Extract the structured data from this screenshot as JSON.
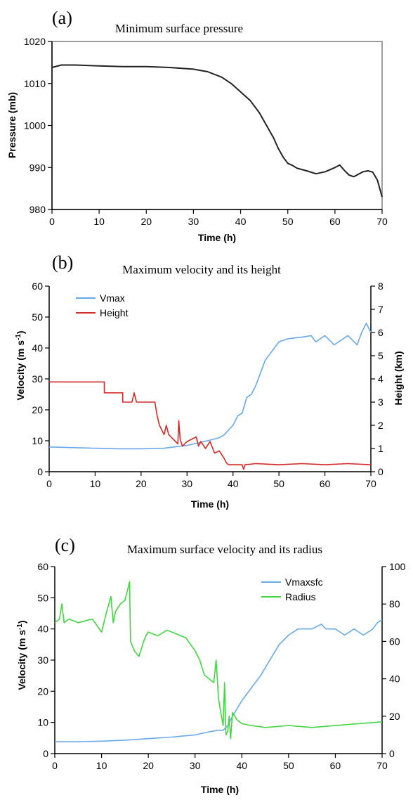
{
  "chart_data": [
    {
      "type": "line",
      "panel_label": "(a)",
      "title": "Minimum surface pressure",
      "xlabel": "Time (h)",
      "ylabel": "Pressure (mb)",
      "xlim": [
        0,
        70
      ],
      "ylim": [
        980,
        1020
      ],
      "x_ticks": [
        0,
        10,
        20,
        30,
        40,
        50,
        60,
        70
      ],
      "y_ticks": [
        980,
        990,
        1000,
        1010,
        1020
      ],
      "grid": false,
      "series": [
        {
          "color": "#222222",
          "x": [
            0,
            2,
            5,
            10,
            15,
            20,
            25,
            30,
            33,
            36,
            38,
            40,
            42,
            44,
            45,
            46,
            47,
            48,
            49,
            50,
            51,
            52,
            54,
            56,
            58,
            60,
            61,
            62,
            63,
            64,
            65,
            66,
            67,
            68,
            69,
            70
          ],
          "y": [
            1013.8,
            1014.4,
            1014.4,
            1014.2,
            1014.0,
            1014.0,
            1013.8,
            1013.4,
            1012.8,
            1011.5,
            1010.0,
            1008.0,
            1006.0,
            1003.0,
            1001.0,
            999.0,
            997.0,
            994.5,
            992.5,
            991.0,
            990.5,
            989.8,
            989.2,
            988.5,
            989.0,
            990.0,
            990.6,
            989.3,
            988.2,
            987.8,
            988.4,
            989.0,
            989.2,
            988.9,
            987.0,
            983.0
          ]
        }
      ]
    },
    {
      "type": "line",
      "panel_label": "(b)",
      "title": "Maximum velocity and its height",
      "xlabel": "Time (h)",
      "ylabel": "Velocity (m s-1)",
      "y2label": "Height (km)",
      "xlim": [
        0,
        70
      ],
      "ylim": [
        0,
        60
      ],
      "y2lim": [
        0,
        8
      ],
      "x_ticks": [
        0,
        10,
        20,
        30,
        40,
        50,
        60,
        70
      ],
      "y_ticks": [
        0,
        10,
        20,
        30,
        40,
        50,
        60
      ],
      "y2_ticks": [
        0,
        1,
        2,
        3,
        4,
        5,
        6,
        7,
        8
      ],
      "grid": false,
      "legend_position": "top-left",
      "series": [
        {
          "name": "Vmax",
          "color": "#6aa8e8",
          "axis": "left",
          "x": [
            0,
            5,
            10,
            15,
            20,
            25,
            30,
            33,
            35,
            37,
            38,
            40,
            41,
            42,
            43,
            44,
            45,
            46,
            47,
            48,
            49,
            50,
            52,
            55,
            57,
            58,
            60,
            62,
            64,
            65,
            67,
            68,
            69,
            70
          ],
          "y": [
            8.0,
            7.8,
            7.6,
            7.4,
            7.4,
            7.6,
            8.5,
            9.5,
            10.2,
            11.0,
            11.8,
            15.0,
            18.0,
            19.0,
            24.0,
            25.0,
            28.0,
            32.0,
            36.0,
            38.0,
            40.0,
            42.0,
            43.0,
            43.5,
            44.0,
            42.0,
            44.0,
            41.0,
            43.0,
            44.0,
            41.0,
            45.0,
            48.0,
            45.0
          ]
        },
        {
          "name": "Height",
          "color": "#d42a2a",
          "axis": "right",
          "x": [
            0,
            12,
            12,
            16,
            16,
            18,
            18.5,
            19,
            23,
            23.5,
            24,
            25,
            25.5,
            26,
            27,
            28,
            28.2,
            28.5,
            29,
            30,
            32,
            32.5,
            33,
            34,
            35,
            36,
            37,
            38,
            38.5,
            39,
            42,
            42.3,
            42.6,
            45,
            50,
            55,
            60,
            65,
            70
          ],
          "y": [
            3.87,
            3.87,
            3.4,
            3.4,
            3.0,
            3.0,
            3.4,
            3.0,
            3.0,
            2.4,
            2.0,
            1.6,
            2.0,
            1.6,
            1.4,
            1.2,
            2.2,
            1.4,
            1.1,
            1.3,
            1.5,
            1.1,
            1.3,
            1.0,
            1.3,
            0.8,
            0.9,
            0.6,
            0.4,
            0.3,
            0.3,
            0.1,
            0.3,
            0.35,
            0.3,
            0.35,
            0.3,
            0.35,
            0.3
          ]
        }
      ]
    },
    {
      "type": "line",
      "panel_label": "(c)",
      "title": "Maximum surface velocity and its radius",
      "xlabel": "Time (h)",
      "ylabel": "Velocity (m s-1)",
      "y2label": "",
      "xlim": [
        0,
        70
      ],
      "ylim": [
        0,
        60
      ],
      "y2lim": [
        0,
        100
      ],
      "x_ticks": [
        0,
        10,
        20,
        30,
        40,
        50,
        60,
        70
      ],
      "y_ticks": [
        0,
        10,
        20,
        30,
        40,
        50,
        60
      ],
      "y2_ticks": [
        0,
        20,
        40,
        60,
        80,
        100
      ],
      "grid": false,
      "legend_position": "top-right",
      "series": [
        {
          "name": "Vmaxsfc",
          "color": "#6aa8e8",
          "axis": "left",
          "x": [
            0,
            5,
            10,
            15,
            20,
            25,
            30,
            33,
            35,
            36,
            37,
            38,
            40,
            42,
            44,
            46,
            48,
            50,
            52,
            55,
            57,
            58,
            60,
            62,
            64,
            66,
            68,
            69,
            70
          ],
          "y": [
            3.8,
            3.8,
            4.0,
            4.3,
            4.8,
            5.3,
            6.0,
            7.0,
            7.5,
            7.5,
            9.0,
            12.0,
            17.0,
            21.0,
            25.0,
            30.0,
            35.0,
            38.0,
            40.0,
            40.0,
            41.5,
            40.0,
            40.0,
            38.0,
            40.0,
            38.0,
            40.0,
            42.0,
            43.0
          ]
        },
        {
          "name": "Radius",
          "color": "#44d444",
          "axis": "right",
          "x": [
            0,
            1,
            1.5,
            2,
            3,
            5,
            8,
            10,
            11,
            12,
            12.5,
            13,
            14,
            15,
            16,
            16.2,
            17,
            18,
            19,
            19.5,
            20,
            22,
            24,
            26,
            28,
            30,
            31,
            32,
            33,
            34,
            34.5,
            35,
            35.5,
            36,
            36.3,
            36.6,
            37,
            37.3,
            37.6,
            38,
            39,
            40,
            42,
            45,
            50,
            55,
            60,
            65,
            70
          ],
          "y": [
            70,
            72,
            80,
            70,
            72,
            70,
            72,
            65,
            75,
            84,
            70,
            76,
            80,
            82,
            92,
            60,
            55,
            52,
            60,
            63,
            65,
            63,
            66,
            64,
            62,
            55,
            50,
            42,
            40,
            38,
            50,
            30,
            22,
            15,
            38,
            10,
            12,
            20,
            8,
            22,
            18,
            16,
            15,
            14,
            15,
            14,
            15,
            16,
            17
          ]
        }
      ]
    }
  ]
}
